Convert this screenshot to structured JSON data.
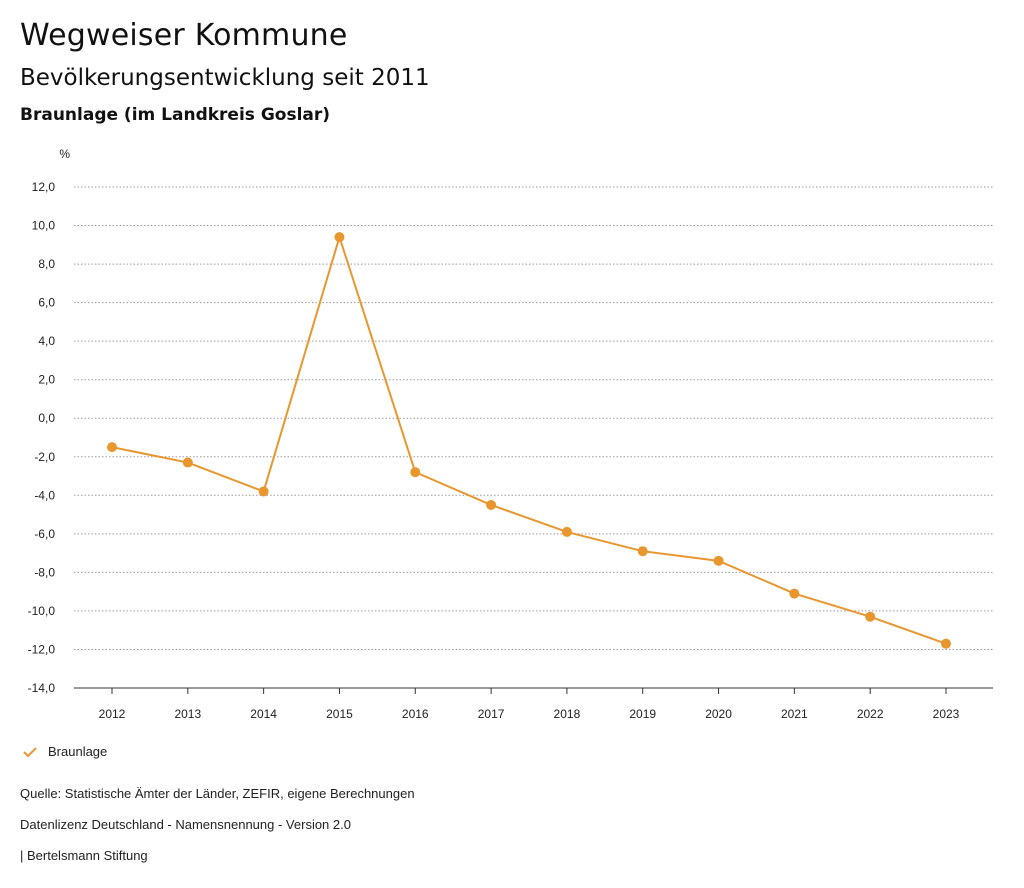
{
  "header": {
    "title": "Wegweiser Kommune",
    "subtitle": "Bevölkerungsentwicklung seit 2011",
    "region": "Braunlage (im Landkreis Goslar)"
  },
  "chart_data": {
    "type": "line",
    "ylabel": "%",
    "xlabel": "",
    "ylim": [
      -14,
      12
    ],
    "yticks": [
      "12,0",
      "10,0",
      "8,0",
      "6,0",
      "4,0",
      "2,0",
      "0,0",
      "-2,0",
      "-4,0",
      "-6,0",
      "-8,0",
      "-10,0",
      "-12,0",
      "-14,0"
    ],
    "categories": [
      "2012",
      "2013",
      "2014",
      "2015",
      "2016",
      "2017",
      "2018",
      "2019",
      "2020",
      "2021",
      "2022",
      "2023"
    ],
    "series": [
      {
        "name": "Braunlage",
        "color": "#E8962E",
        "values": [
          -1.5,
          -2.3,
          -3.8,
          9.4,
          -2.8,
          -4.5,
          -5.9,
          -6.9,
          -7.4,
          -9.1,
          -10.3,
          -11.7
        ]
      }
    ],
    "grid": true,
    "legend": "bottom-left"
  },
  "legend": {
    "label": "Braunlage"
  },
  "footer": {
    "source": "Quelle: Statistische Ämter der Länder, ZEFIR, eigene Berechnungen",
    "license": "Datenlizenz Deutschland - Namensnennung - Version 2.0",
    "publisher": "| Bertelsmann Stiftung"
  }
}
